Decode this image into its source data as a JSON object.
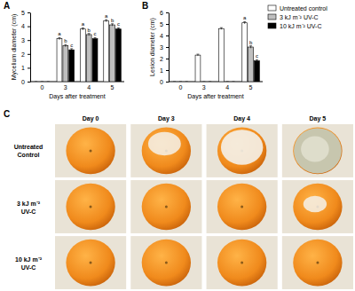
{
  "chart_data": [
    {
      "type": "bar",
      "title": "A",
      "y_label": "Mycelium diameter (cm)",
      "x_label": "Days after treatment",
      "categories": [
        "0",
        "3",
        "4",
        "5"
      ],
      "ylim": [
        0,
        5
      ],
      "yticks": [
        0,
        1,
        2,
        3,
        4,
        5
      ],
      "series": [
        {
          "color": "#ffffff",
          "values": [
            0,
            3.1,
            3.8,
            4.4
          ],
          "errors": [
            0,
            0.08,
            0.08,
            0.08
          ],
          "annotations": [
            null,
            "a",
            "a",
            "a"
          ]
        },
        {
          "color": "#bfbfbf",
          "values": [
            0,
            2.6,
            3.4,
            4.1
          ],
          "errors": [
            0,
            0.08,
            0.08,
            0.08
          ],
          "annotations": [
            null,
            "b",
            "b",
            "b"
          ]
        },
        {
          "color": "#000000",
          "values": [
            0,
            2.3,
            3.1,
            3.8
          ],
          "errors": [
            0,
            0.08,
            0.08,
            0.08
          ],
          "annotations": [
            null,
            "c",
            "c",
            "c"
          ]
        }
      ]
    },
    {
      "type": "bar",
      "title": "B",
      "y_label": "Lesion diameter (cm)",
      "x_label": "Days after treatment",
      "categories": [
        "0",
        "3",
        "4",
        "5"
      ],
      "ylim": [
        0,
        6
      ],
      "yticks": [
        0,
        1,
        2,
        3,
        4,
        5,
        6
      ],
      "legend": "right",
      "series": [
        {
          "name": "Untreated control",
          "color": "#ffffff",
          "values": [
            0,
            2.3,
            4.6,
            5.1
          ],
          "errors": [
            0,
            0.08,
            0.08,
            0.1
          ],
          "annotations": [
            null,
            null,
            null,
            "a"
          ]
        },
        {
          "name": "3 kJ m⁻² UV-C",
          "color": "#bfbfbf",
          "values": [
            0,
            0,
            0,
            3.0
          ],
          "errors": [
            0,
            0,
            0,
            0.1
          ],
          "annotations": [
            null,
            null,
            null,
            "b"
          ]
        },
        {
          "name": "10 kJ m⁻² UV-C",
          "color": "#000000",
          "values": [
            0,
            0,
            0,
            1.8
          ],
          "errors": [
            0,
            0,
            0,
            0.1
          ],
          "annotations": [
            null,
            null,
            null,
            "c"
          ]
        }
      ]
    }
  ],
  "photo_panel": {
    "title": "C",
    "columns": [
      "Day 0",
      "Day 3",
      "Day 4",
      "Day 5"
    ],
    "row_labels": [
      [
        "Untreated",
        "Control"
      ],
      [
        "3 kJ m⁻²",
        "UV-C"
      ],
      [
        "10 kJ m⁻²",
        "UV-C"
      ]
    ]
  }
}
